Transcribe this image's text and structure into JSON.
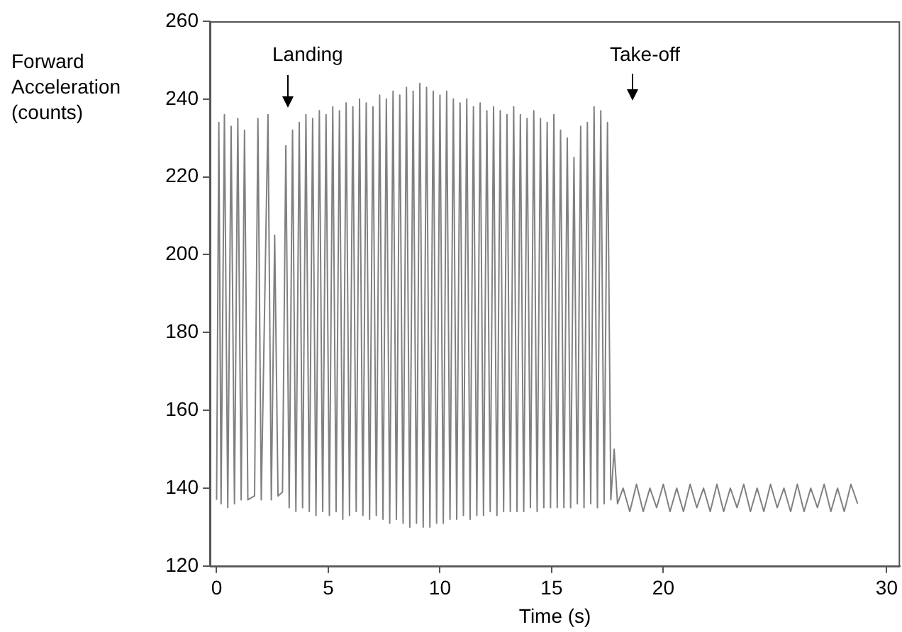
{
  "chart_data": {
    "type": "line",
    "xlabel": "Time (s)",
    "ylabel": "Forward Acceleration (counts)",
    "xlim": [
      -0.3,
      30.6
    ],
    "xticks": [
      0,
      5,
      10,
      15,
      20,
      30
    ],
    "ylim": [
      120,
      260
    ],
    "yticks": [
      120,
      140,
      160,
      180,
      200,
      220,
      240,
      260
    ],
    "marker": "none",
    "annotations": [
      "Landing",
      "Take-off"
    ],
    "series": [
      {
        "color": "#808080",
        "x": [
          0,
          0.1,
          0.2,
          0.35,
          0.5,
          0.65,
          0.8,
          0.95,
          1.1,
          1.25,
          1.4,
          1.7,
          1.85,
          2.0,
          2.3,
          2.45,
          2.6,
          2.75,
          2.95,
          3.1,
          3.25,
          3.4,
          3.55,
          3.7,
          3.85,
          4.0,
          4.15,
          4.3,
          4.45,
          4.6,
          4.75,
          4.9,
          5.05,
          5.2,
          5.35,
          5.5,
          5.65,
          5.8,
          5.95,
          6.1,
          6.25,
          6.4,
          6.55,
          6.7,
          6.85,
          7.0,
          7.15,
          7.3,
          7.45,
          7.6,
          7.75,
          7.9,
          8.05,
          8.2,
          8.35,
          8.5,
          8.65,
          8.8,
          8.95,
          9.1,
          9.25,
          9.4,
          9.55,
          9.7,
          9.85,
          10.0,
          10.15,
          10.3,
          10.45,
          10.6,
          10.75,
          10.9,
          11.05,
          11.2,
          11.35,
          11.5,
          11.65,
          11.8,
          11.95,
          12.1,
          12.25,
          12.4,
          12.55,
          12.7,
          12.85,
          13.0,
          13.15,
          13.3,
          13.45,
          13.6,
          13.75,
          13.9,
          14.05,
          14.2,
          14.35,
          14.5,
          14.65,
          14.8,
          14.95,
          15.1,
          15.25,
          15.4,
          15.55,
          15.7,
          15.85,
          16.0,
          16.15,
          16.3,
          16.45,
          16.6,
          16.75,
          16.9,
          17.05,
          17.2,
          17.35,
          17.5,
          17.65,
          17.8,
          17.95,
          18.2,
          18.5,
          18.8,
          19.1,
          19.4,
          19.7,
          20.0,
          20.3,
          20.6,
          20.9,
          21.2,
          21.5,
          21.8,
          22.1,
          22.4,
          22.7,
          23.0,
          23.3,
          23.6,
          23.9,
          24.2,
          24.5,
          24.8,
          25.1,
          25.4,
          25.7,
          26.0,
          26.3,
          26.6,
          26.9,
          27.2,
          27.5,
          27.8,
          28.1,
          28.4,
          28.7
        ],
        "values": [
          137,
          234,
          136,
          236,
          135,
          233,
          136,
          235,
          137,
          232,
          137,
          138,
          235,
          137,
          236,
          137,
          205,
          138,
          139,
          228,
          135,
          232,
          134,
          234,
          135,
          236,
          134,
          235,
          133,
          237,
          134,
          236,
          133,
          238,
          134,
          237,
          132,
          239,
          133,
          238,
          134,
          240,
          133,
          239,
          132,
          238,
          133,
          241,
          132,
          240,
          131,
          242,
          132,
          241,
          131,
          243,
          130,
          242,
          131,
          244,
          130,
          243,
          130,
          242,
          131,
          241,
          131,
          242,
          132,
          240,
          132,
          239,
          133,
          240,
          132,
          238,
          133,
          239,
          133,
          237,
          134,
          238,
          133,
          237,
          134,
          236,
          134,
          238,
          134,
          236,
          134,
          235,
          135,
          237,
          134,
          235,
          135,
          234,
          135,
          236,
          135,
          232,
          135,
          230,
          135,
          225,
          136,
          233,
          135,
          234,
          136,
          238,
          135,
          237,
          136,
          234,
          137,
          150,
          136,
          140,
          134,
          141,
          134,
          140,
          135,
          141,
          134,
          140,
          134,
          141,
          135,
          140,
          134,
          141,
          134,
          140,
          135,
          141,
          134,
          140,
          134,
          141,
          135,
          140,
          134,
          141,
          134,
          140,
          135,
          141,
          134,
          140,
          134,
          141,
          136
        ]
      }
    ]
  }
}
